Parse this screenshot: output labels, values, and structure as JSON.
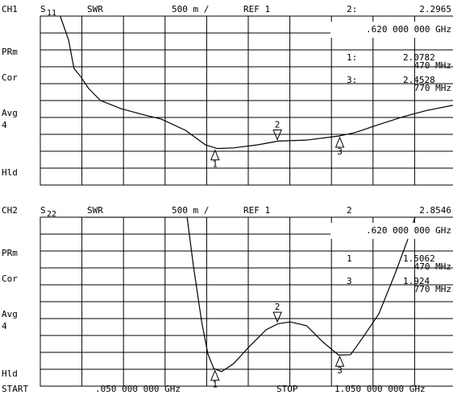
{
  "chart_data": [
    {
      "type": "line",
      "channel": "CH1",
      "param": "S",
      "param_sub": "11",
      "format": "SWR",
      "scale": "500 m /",
      "reference": "REF 1",
      "status": [
        "PRm",
        "Cor",
        "Avg",
        "4",
        "Hld"
      ],
      "xlim": [
        0.05,
        1.05
      ],
      "xticks": [
        0.05,
        0.15,
        0.25,
        0.35,
        0.45,
        0.55,
        0.65,
        0.75,
        0.85,
        0.95,
        1.05
      ],
      "ylim": [
        1,
        6
      ],
      "yticks": [
        1,
        1.5,
        2,
        2.5,
        3,
        3.5,
        4,
        4.5,
        5,
        5.5,
        6
      ],
      "grid": true,
      "color": "#000000",
      "x": [
        0.098,
        0.118,
        0.131,
        0.147,
        0.166,
        0.195,
        0.244,
        0.292,
        0.341,
        0.399,
        0.447,
        0.476,
        0.515,
        0.573,
        0.622,
        0.69,
        0.767,
        0.806,
        0.864,
        0.922,
        0.98,
        1.042
      ],
      "values": [
        6.0,
        5.29,
        4.45,
        4.21,
        3.86,
        3.5,
        3.26,
        3.1,
        2.95,
        2.62,
        2.19,
        2.08,
        2.1,
        2.19,
        2.3,
        2.33,
        2.45,
        2.55,
        2.79,
        3.02,
        3.21,
        3.36
      ],
      "markers": [
        {
          "name": "2",
          "readout": "2:",
          "x": 0.62,
          "value": 2.2965,
          "freq": ".620 000 000 GHz",
          "active": true
        },
        {
          "name": "1",
          "readout": "1:",
          "x": 0.47,
          "value": 2.0782,
          "freq": "470 MHz"
        },
        {
          "name": "3",
          "readout": "3:",
          "x": 0.77,
          "value": 2.4528,
          "freq": "770 MHz"
        }
      ]
    },
    {
      "type": "line",
      "channel": "CH2",
      "param": "S",
      "param_sub": "22",
      "format": "SWR",
      "scale": "500 m /",
      "reference": "REF 1",
      "status": [
        "PRm",
        "Cor",
        "Avg",
        "4",
        "Hld"
      ],
      "xlim": [
        0.05,
        1.05
      ],
      "xticks": [
        0.05,
        0.15,
        0.25,
        0.35,
        0.45,
        0.55,
        0.65,
        0.75,
        0.85,
        0.95,
        1.05
      ],
      "ylim": [
        1,
        6
      ],
      "yticks": [
        1,
        1.5,
        2,
        2.5,
        3,
        3.5,
        4,
        4.5,
        5,
        5.5,
        6
      ],
      "grid": true,
      "color": "#000000",
      "x": [
        0.157,
        0.403,
        0.418,
        0.438,
        0.453,
        0.467,
        0.486,
        0.515,
        0.554,
        0.593,
        0.622,
        0.651,
        0.69,
        0.729,
        0.767,
        0.796,
        0.825,
        0.864,
        0.903,
        0.932,
        0.951
      ],
      "values": [
        6.0,
        6.0,
        4.57,
        2.9,
        1.95,
        1.52,
        1.43,
        1.67,
        2.19,
        2.67,
        2.85,
        2.9,
        2.79,
        2.31,
        1.92,
        1.93,
        2.43,
        3.14,
        4.33,
        5.29,
        6.0
      ],
      "markers": [
        {
          "name": "2",
          "readout": "2",
          "x": 0.62,
          "value": 2.8546,
          "freq": ".620 000 000 GHz",
          "active": true
        },
        {
          "name": "1",
          "readout": "1",
          "x": 0.47,
          "value": 1.5062,
          "freq": "470 MHz"
        },
        {
          "name": "3",
          "readout": "3",
          "x": 0.77,
          "value": 1.924,
          "freq": "770 MHz"
        }
      ]
    }
  ],
  "footer": {
    "start": "START",
    "start_freq": ".050 000 000 GHz",
    "stop": "STOP",
    "stop_freq": "1.050 000 000 GHz"
  }
}
